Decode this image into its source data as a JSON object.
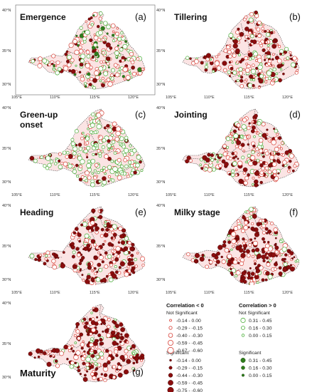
{
  "panels": [
    {
      "id": "a",
      "title_lines": [
        "Emergence"
      ],
      "letter": "(a)",
      "dominant": "mixed"
    },
    {
      "id": "b",
      "title_lines": [
        "Tillering"
      ],
      "letter": "(b)",
      "dominant": "neg"
    },
    {
      "id": "c",
      "title_lines": [
        "Green-up",
        "onset"
      ],
      "letter": "(c)",
      "dominant": "pos"
    },
    {
      "id": "d",
      "title_lines": [
        "Jointing"
      ],
      "letter": "(d)",
      "dominant": "neg"
    },
    {
      "id": "e",
      "title_lines": [
        "Heading"
      ],
      "letter": "(e)",
      "dominant": "negsig"
    },
    {
      "id": "f",
      "title_lines": [
        "Milky stage"
      ],
      "letter": "(f)",
      "dominant": "negsig"
    },
    {
      "id": "g",
      "title_lines": [
        "Maturity"
      ],
      "letter": "(g)",
      "dominant": "negsig"
    }
  ],
  "axes": {
    "lat_labels": [
      "40°N",
      "35°N",
      "30°N"
    ],
    "lon_labels": [
      "105°E",
      "110°E",
      "115°E",
      "120°E"
    ]
  },
  "legend": {
    "neg_header": "Correlation < 0",
    "pos_header": "Correlation > 0",
    "not_significant": "Not Significant",
    "significant": "Significant",
    "neg_not_sig": [
      "-0.14 - 0.00",
      "-0.29 - -0.15",
      "-0.40 - -0.30",
      "-0.59 - -0.45",
      "-0.67 - -0.60"
    ],
    "neg_sig": [
      "-0.14 - 0.00",
      "-0.29 - -0.15",
      "-0.44 - -0.30",
      "-0.59 - -0.45",
      "-0.75 - -0.60"
    ],
    "pos_not_sig": [
      "0.31 - 0.45",
      "0.16 - 0.30",
      "0.00 - 0.15"
    ],
    "pos_sig": [
      "0.31 - 0.45",
      "0.16 - 0.30",
      "0.00 - 0.15"
    ]
  },
  "colors": {
    "neg_outline": "#d9443a",
    "neg_fill": "#8b0d0d",
    "pos_outline": "#4caf3a",
    "pos_fill": "#2f7d1c",
    "region_fill": "#fbe4e4"
  }
}
